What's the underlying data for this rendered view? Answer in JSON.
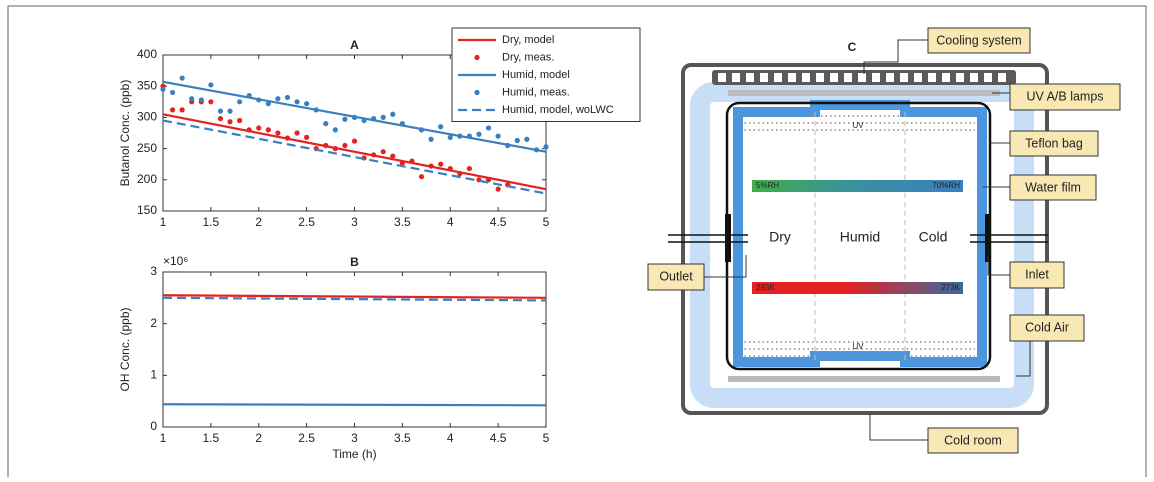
{
  "chart_data": [
    {
      "type": "line",
      "title": "A",
      "ylabel": "Butanol Conc. (ppb)",
      "xlim": [
        1,
        5
      ],
      "xticks": [
        1,
        1.5,
        2,
        2.5,
        3,
        3.5,
        4,
        4.5,
        5
      ],
      "ylim": [
        150,
        400
      ],
      "yticks": [
        150,
        200,
        250,
        300,
        350,
        400
      ],
      "legend": "upper right",
      "series": [
        {
          "name": "Dry, model",
          "color": "#e2231f",
          "style": "solid",
          "x": [
            1,
            5
          ],
          "values": [
            305,
            185
          ]
        },
        {
          "name": "Dry, meas.",
          "color": "#e2231f",
          "style": "points",
          "x": [
            1.0,
            1.1,
            1.2,
            1.3,
            1.4,
            1.5,
            1.6,
            1.7,
            1.8,
            1.9,
            2.0,
            2.1,
            2.2,
            2.3,
            2.4,
            2.5,
            2.6,
            2.7,
            2.8,
            2.9,
            3.0,
            3.1,
            3.2,
            3.3,
            3.4,
            3.5,
            3.6,
            3.7,
            3.8,
            3.9,
            4.0,
            4.1,
            4.2,
            4.3,
            4.4,
            4.5,
            4.6
          ],
          "values": [
            350,
            312,
            312,
            325,
            325,
            325,
            298,
            293,
            295,
            280,
            283,
            280,
            275,
            267,
            275,
            268,
            250,
            255,
            250,
            255,
            262,
            235,
            240,
            245,
            238,
            227,
            230,
            205,
            222,
            225,
            218,
            210,
            218,
            200,
            200,
            185,
            192
          ]
        },
        {
          "name": "Humid, model",
          "color": "#3a7fbf",
          "style": "solid",
          "x": [
            1,
            5
          ],
          "values": [
            357,
            245
          ]
        },
        {
          "name": "Humid, meas.",
          "color": "#3a7fbf",
          "style": "points",
          "x": [
            1.0,
            1.1,
            1.2,
            1.3,
            1.4,
            1.5,
            1.6,
            1.7,
            1.8,
            1.9,
            2.0,
            2.1,
            2.2,
            2.3,
            2.4,
            2.5,
            2.6,
            2.7,
            2.8,
            2.9,
            3.0,
            3.1,
            3.2,
            3.3,
            3.4,
            3.5,
            3.7,
            3.8,
            3.9,
            4.0,
            4.1,
            4.2,
            4.3,
            4.4,
            4.5,
            4.6,
            4.7,
            4.8,
            4.9,
            5.0
          ],
          "values": [
            345,
            340,
            363,
            330,
            328,
            352,
            310,
            310,
            325,
            335,
            328,
            322,
            330,
            332,
            325,
            322,
            312,
            290,
            280,
            297,
            300,
            295,
            298,
            300,
            305,
            290,
            280,
            265,
            285,
            268,
            270,
            270,
            273,
            283,
            270,
            255,
            263,
            265,
            248,
            253
          ]
        },
        {
          "name": "Humid, model, woLWC",
          "color": "#3a7fbf",
          "style": "dashed",
          "x": [
            1,
            5
          ],
          "values": [
            295,
            178
          ]
        }
      ]
    },
    {
      "type": "line",
      "title": "B",
      "ylabel": "OH Conc. (ppb)",
      "xlabel": "Time (h)",
      "yexponent": "×10⁶",
      "xlim": [
        1,
        5
      ],
      "xticks": [
        1,
        1.5,
        2,
        2.5,
        3,
        3.5,
        4,
        4.5,
        5
      ],
      "ylim": [
        0,
        3
      ],
      "yticks": [
        0,
        1,
        2,
        3
      ],
      "series": [
        {
          "color": "#e2231f",
          "style": "solid",
          "x": [
            1,
            5
          ],
          "values": [
            2.55,
            2.5
          ]
        },
        {
          "color": "#3a7fbf",
          "style": "solid",
          "x": [
            1,
            5
          ],
          "values": [
            0.44,
            0.42
          ]
        },
        {
          "color": "#3a7fbf",
          "style": "dashed",
          "x": [
            1,
            5
          ],
          "values": [
            2.5,
            2.45
          ]
        }
      ]
    }
  ],
  "diagram": {
    "title": "C",
    "callouts": [
      "Cooling system",
      "UV A/B lamps",
      "Teflon bag",
      "Water film",
      "Inlet",
      "Cold Air",
      "Cold room",
      "Outlet"
    ],
    "zones": [
      "Dry",
      "Humid",
      "Cold"
    ],
    "lamp_labels": [
      "UV",
      "UV"
    ],
    "rh_labels": [
      "5%RH",
      "70%RH"
    ],
    "temp_labels": [
      "293K",
      "273K"
    ]
  }
}
